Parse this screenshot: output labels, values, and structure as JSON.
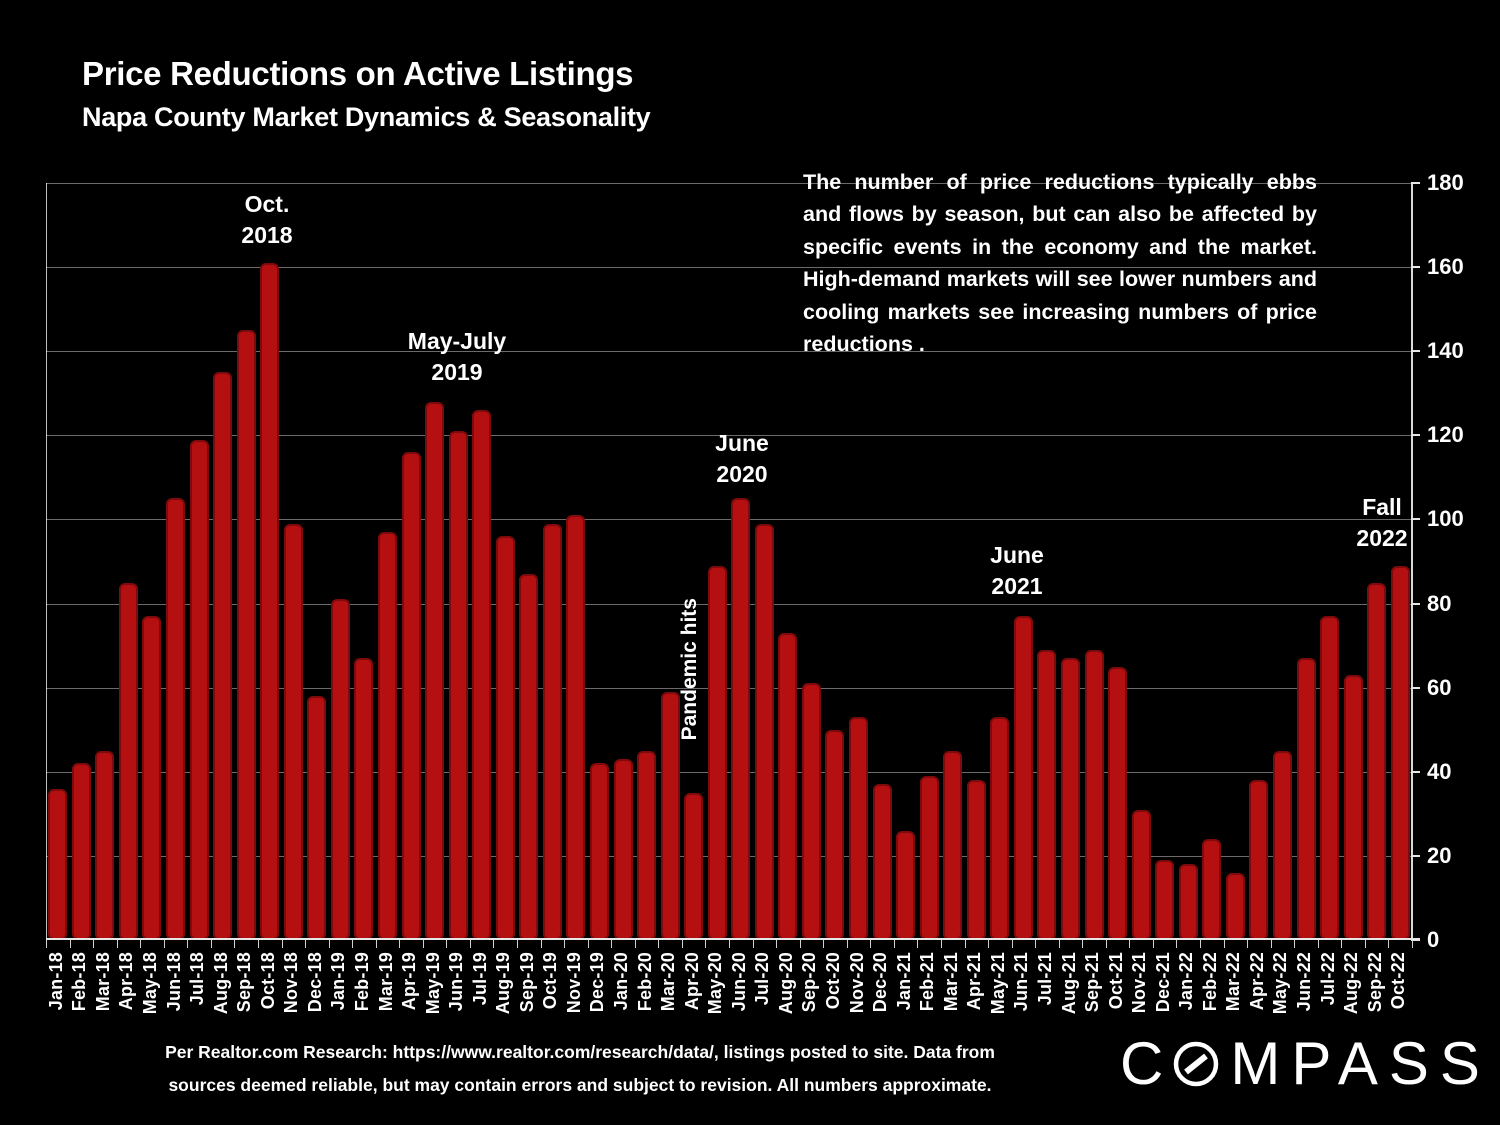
{
  "slide": {
    "title": "Price Reductions on Active Listings",
    "subtitle": "Napa County Market Dynamics & Seasonality",
    "commentary": "The number of price reductions typically ebbs and flows by season, but can also be affected by specific events in the economy and the market. High-demand markets will see lower numbers and cooling markets see increasing numbers of price reductions .",
    "footer_line1": "Per Realtor.com Research:  https://www.realtor.com/research/data/, listings posted to site. Data from",
    "footer_line2": "sources deemed reliable, but may contain errors and subject to revision. All numbers approximate.",
    "logo_text": "COMPASS",
    "logo_letters_before_o": "C",
    "logo_letters_after_o": "MPASS"
  },
  "chart_data": {
    "type": "bar",
    "title": "Price Reductions on Active Listings",
    "xlabel": "",
    "ylabel": "",
    "ylim": [
      0,
      180
    ],
    "yticks": [
      0,
      20,
      40,
      60,
      80,
      100,
      120,
      140,
      160,
      180
    ],
    "grid": true,
    "legend_position": "none",
    "bar_color": "#b40f11",
    "bar_border_color": "#7e0a0b",
    "background_color": "#000000",
    "categories": [
      "Jan-18",
      "Feb-18",
      "Mar-18",
      "Apr-18",
      "May-18",
      "Jun-18",
      "Jul-18",
      "Aug-18",
      "Sep-18",
      "Oct-18",
      "Nov-18",
      "Dec-18",
      "Jan-19",
      "Feb-19",
      "Mar-19",
      "Apr-19",
      "May-19",
      "Jun-19",
      "Jul-19",
      "Aug-19",
      "Sep-19",
      "Oct-19",
      "Nov-19",
      "Dec-19",
      "Jan-20",
      "Feb-20",
      "Mar-20",
      "Apr-20",
      "May-20",
      "Jun-20",
      "Jul-20",
      "Aug-20",
      "Sep-20",
      "Oct-20",
      "Nov-20",
      "Dec-20",
      "Jan-21",
      "Feb-21",
      "Mar-21",
      "Apr-21",
      "May-21",
      "Jun-21",
      "Jul-21",
      "Aug-21",
      "Sep-21",
      "Oct-21",
      "Nov-21",
      "Dec-21",
      "Jan-22",
      "Feb-22",
      "Mar-22",
      "Apr-22",
      "May-22",
      "Jun-22",
      "Jul-22",
      "Aug-22",
      "Sep-22",
      "Oct-22"
    ],
    "values": [
      36,
      42,
      45,
      85,
      77,
      105,
      119,
      135,
      145,
      161,
      99,
      58,
      81,
      67,
      97,
      116,
      128,
      121,
      126,
      96,
      87,
      99,
      101,
      42,
      43,
      45,
      59,
      35,
      89,
      105,
      99,
      73,
      61,
      50,
      53,
      37,
      26,
      39,
      45,
      38,
      53,
      77,
      69,
      67,
      69,
      65,
      31,
      19,
      18,
      24,
      16,
      38,
      45,
      67,
      77,
      63,
      85,
      89
    ],
    "annotations": [
      {
        "id": "oct-2018",
        "lines": [
          "Oct.",
          "2018"
        ]
      },
      {
        "id": "may-july-2019",
        "lines": [
          "May-July",
          "2019"
        ]
      },
      {
        "id": "june-2020",
        "lines": [
          "June",
          "2020"
        ]
      },
      {
        "id": "june-2021",
        "lines": [
          "June",
          "2021"
        ]
      },
      {
        "id": "fall-2022",
        "lines": [
          "Fall",
          "2022"
        ]
      },
      {
        "id": "pandemic-hits",
        "lines": [
          "Pandemic hits"
        ],
        "orientation": "vertical"
      }
    ]
  }
}
